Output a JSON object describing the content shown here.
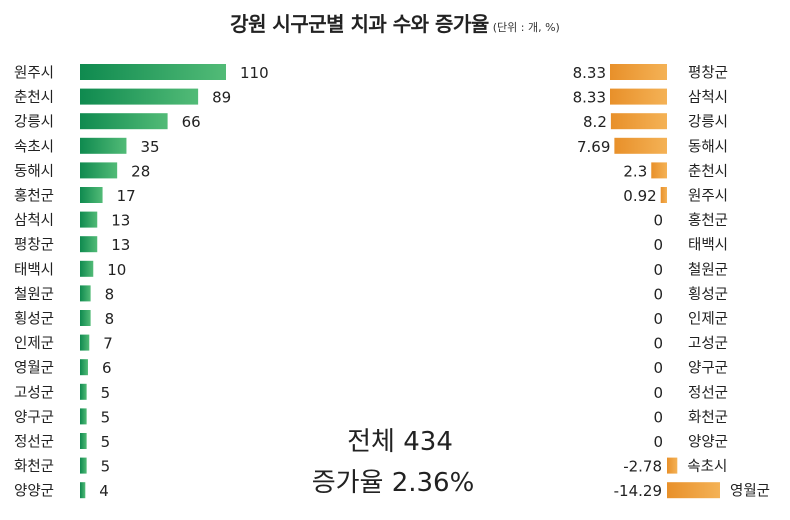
{
  "chart_data": [
    {
      "type": "bar",
      "orientation": "horizontal",
      "colors": {
        "bar_start": "#0f8a4f",
        "bar_end": "#52bb77"
      },
      "categories": [
        "원주시",
        "춘천시",
        "강릉시",
        "속초시",
        "동해시",
        "홍천군",
        "삼척시",
        "평창군",
        "태백시",
        "철원군",
        "횡성군",
        "인제군",
        "영월군",
        "고성군",
        "양구군",
        "정선군",
        "화천군",
        "양양군"
      ],
      "values": [
        110,
        89,
        66,
        35,
        28,
        17,
        13,
        13,
        10,
        8,
        8,
        7,
        6,
        5,
        5,
        5,
        5,
        4
      ],
      "value_labels": [
        "110",
        "89",
        "66",
        "35",
        "28",
        "17",
        "13",
        "13",
        "10",
        "8",
        "8",
        "7",
        "6",
        "5",
        "5",
        "5",
        "5",
        "4"
      ],
      "xlim": [
        0,
        110
      ]
    },
    {
      "type": "bar",
      "orientation": "horizontal",
      "colors": {
        "bar_start": "#e8902a",
        "bar_end": "#f4b256"
      },
      "categories": [
        "평창군",
        "삼척시",
        "강릉시",
        "동해시",
        "춘천시",
        "원주시",
        "홍천군",
        "태백시",
        "철원군",
        "횡성군",
        "인제군",
        "고성군",
        "양구군",
        "정선군",
        "화천군",
        "양양군",
        "속초시",
        "영월군"
      ],
      "values": [
        8.33,
        8.33,
        8.2,
        7.69,
        2.3,
        0.92,
        0,
        0,
        0,
        0,
        0,
        0,
        0,
        0,
        0,
        0,
        -2.78,
        -14.29
      ],
      "value_labels": [
        "8.33",
        "8.33",
        "8.2",
        "7.69",
        "2.3",
        "0.92",
        "0",
        "0",
        "0",
        "0",
        "0",
        "0",
        "0",
        "0",
        "0",
        "0",
        "-2.78",
        "-14.29"
      ],
      "xlim": [
        -14.29,
        8.33
      ]
    }
  ],
  "header": {
    "title": "강원 시구군별 치과 수와 증가율",
    "unit": "(단위 : 개, %)"
  },
  "summary": {
    "total": "전체 434",
    "rate": "증가율 2.36%"
  }
}
